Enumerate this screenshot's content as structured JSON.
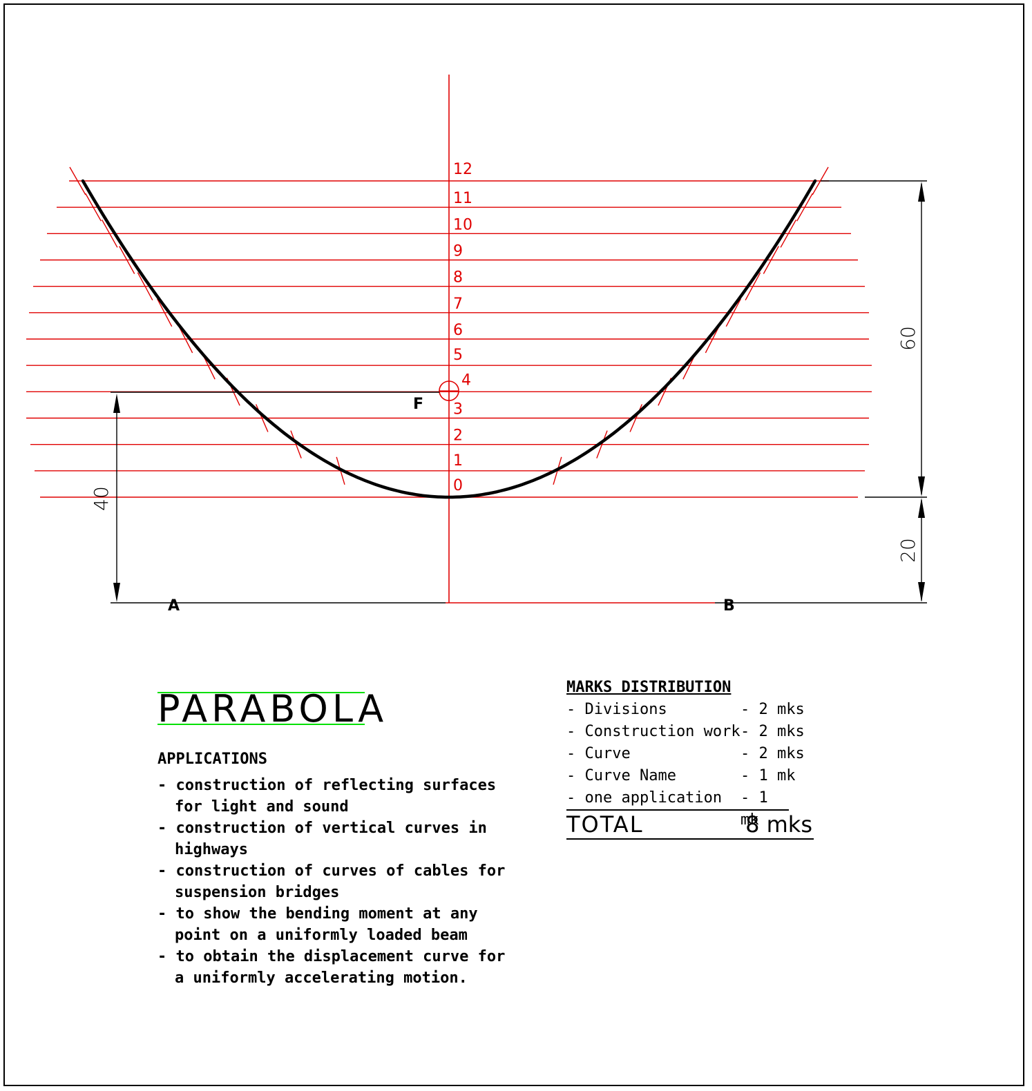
{
  "diagram": {
    "division_labels": [
      "0",
      "1",
      "2",
      "3",
      "4",
      "5",
      "6",
      "7",
      "8",
      "9",
      "10",
      "11",
      "12"
    ],
    "focus_label": "F",
    "point_a_label": "A",
    "point_b_label": "B",
    "dimensions": {
      "height": "60",
      "vertex_to_directrix": "20",
      "focus_to_directrix": "40"
    },
    "colors": {
      "construction": "#e00000",
      "curve": "#000000",
      "dimension": "#000000",
      "title_rule": "#00e000"
    }
  },
  "title": {
    "text": "PARABOLA"
  },
  "applications": {
    "heading": "APPLICATIONS",
    "items": [
      "construction of reflecting surfaces for light and sound",
      "construction of vertical curves in highways",
      "construction of curves of cables for suspension bridges",
      "to show the bending moment at any point on a uniformly loaded beam",
      "to obtain the displacement curve for a uniformly accelerating motion."
    ]
  },
  "marks": {
    "heading": "MARKS DISTRIBUTION",
    "rows": [
      {
        "label": "- Divisions",
        "value": "- 2 mks"
      },
      {
        "label": "- Construction work",
        "value": "- 2 mks"
      },
      {
        "label": "- Curve",
        "value": "- 2 mks"
      },
      {
        "label": "- Curve Name",
        "value": "- 1 mk"
      },
      {
        "label": "- one application",
        "value": "- 1 mk"
      }
    ],
    "total_label": "TOTAL",
    "total_value": "8 mks"
  }
}
